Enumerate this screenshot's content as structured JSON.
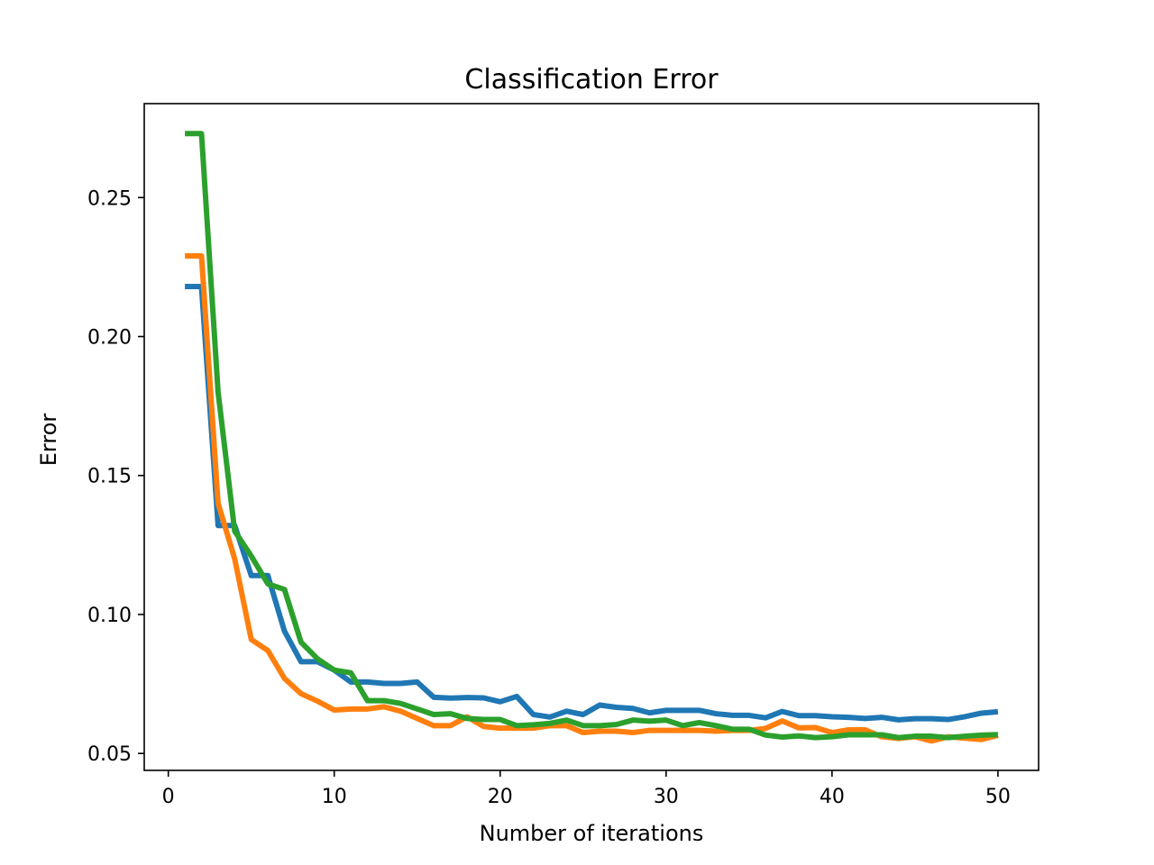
{
  "chart_data": {
    "type": "line",
    "title": "Classification Error",
    "xlabel": "Number of iterations",
    "ylabel": "Error",
    "xlim": [
      -1.45,
      52.45
    ],
    "ylim": [
      0.0439,
      0.2838
    ],
    "xticks": [
      0,
      10,
      20,
      30,
      40,
      50
    ],
    "xtick_labels": [
      "0",
      "10",
      "20",
      "30",
      "40",
      "50"
    ],
    "yticks": [
      0.05,
      0.1,
      0.15,
      0.2,
      0.25
    ],
    "ytick_labels": [
      "0.05",
      "0.10",
      "0.15",
      "0.20",
      "0.25"
    ],
    "grid": false,
    "legend": "none",
    "x": [
      1,
      2,
      3,
      4,
      5,
      6,
      7,
      8,
      9,
      10,
      11,
      12,
      13,
      14,
      15,
      16,
      17,
      18,
      19,
      20,
      21,
      22,
      23,
      24,
      25,
      26,
      27,
      28,
      29,
      30,
      31,
      32,
      33,
      34,
      35,
      36,
      37,
      38,
      39,
      40,
      41,
      42,
      43,
      44,
      45,
      46,
      47,
      48,
      49,
      50
    ],
    "series": [
      {
        "color": "#1f77b4",
        "values": [
          0.218,
          0.218,
          0.132,
          0.132,
          0.114,
          0.114,
          0.094,
          0.083,
          0.083,
          0.08,
          0.0757,
          0.0757,
          0.0752,
          0.0752,
          0.0757,
          0.0702,
          0.0699,
          0.0701,
          0.07,
          0.0686,
          0.0705,
          0.064,
          0.0631,
          0.0652,
          0.064,
          0.0674,
          0.0666,
          0.0662,
          0.0646,
          0.0655,
          0.0655,
          0.0655,
          0.0643,
          0.0637,
          0.0637,
          0.0628,
          0.0651,
          0.0636,
          0.0636,
          0.0632,
          0.063,
          0.0626,
          0.063,
          0.0621,
          0.0625,
          0.0625,
          0.0622,
          0.0632,
          0.0645,
          0.065
        ]
      },
      {
        "color": "#ff7f0e",
        "values": [
          0.229,
          0.229,
          0.14,
          0.12,
          0.091,
          0.087,
          0.077,
          0.0715,
          0.0688,
          0.0656,
          0.066,
          0.066,
          0.0668,
          0.0652,
          0.0626,
          0.06,
          0.06,
          0.0632,
          0.0597,
          0.0591,
          0.0591,
          0.0591,
          0.06,
          0.06,
          0.0575,
          0.058,
          0.058,
          0.0575,
          0.0583,
          0.0583,
          0.0583,
          0.0583,
          0.058,
          0.0583,
          0.0583,
          0.059,
          0.0617,
          0.0592,
          0.0593,
          0.0575,
          0.0585,
          0.0585,
          0.056,
          0.0554,
          0.056,
          0.0545,
          0.056,
          0.0555,
          0.055,
          0.0565
        ]
      },
      {
        "color": "#2ca02c",
        "values": [
          0.273,
          0.273,
          0.18,
          0.13,
          0.121,
          0.111,
          0.109,
          0.09,
          0.084,
          0.08,
          0.079,
          0.069,
          0.069,
          0.068,
          0.066,
          0.064,
          0.0643,
          0.0626,
          0.0622,
          0.0622,
          0.06,
          0.0603,
          0.0608,
          0.062,
          0.06,
          0.06,
          0.0604,
          0.062,
          0.0616,
          0.062,
          0.06,
          0.0611,
          0.06,
          0.0587,
          0.0587,
          0.0566,
          0.0559,
          0.0563,
          0.0557,
          0.056,
          0.0567,
          0.0567,
          0.0567,
          0.0557,
          0.0562,
          0.0562,
          0.0557,
          0.0562,
          0.0566,
          0.0568
        ]
      }
    ]
  }
}
